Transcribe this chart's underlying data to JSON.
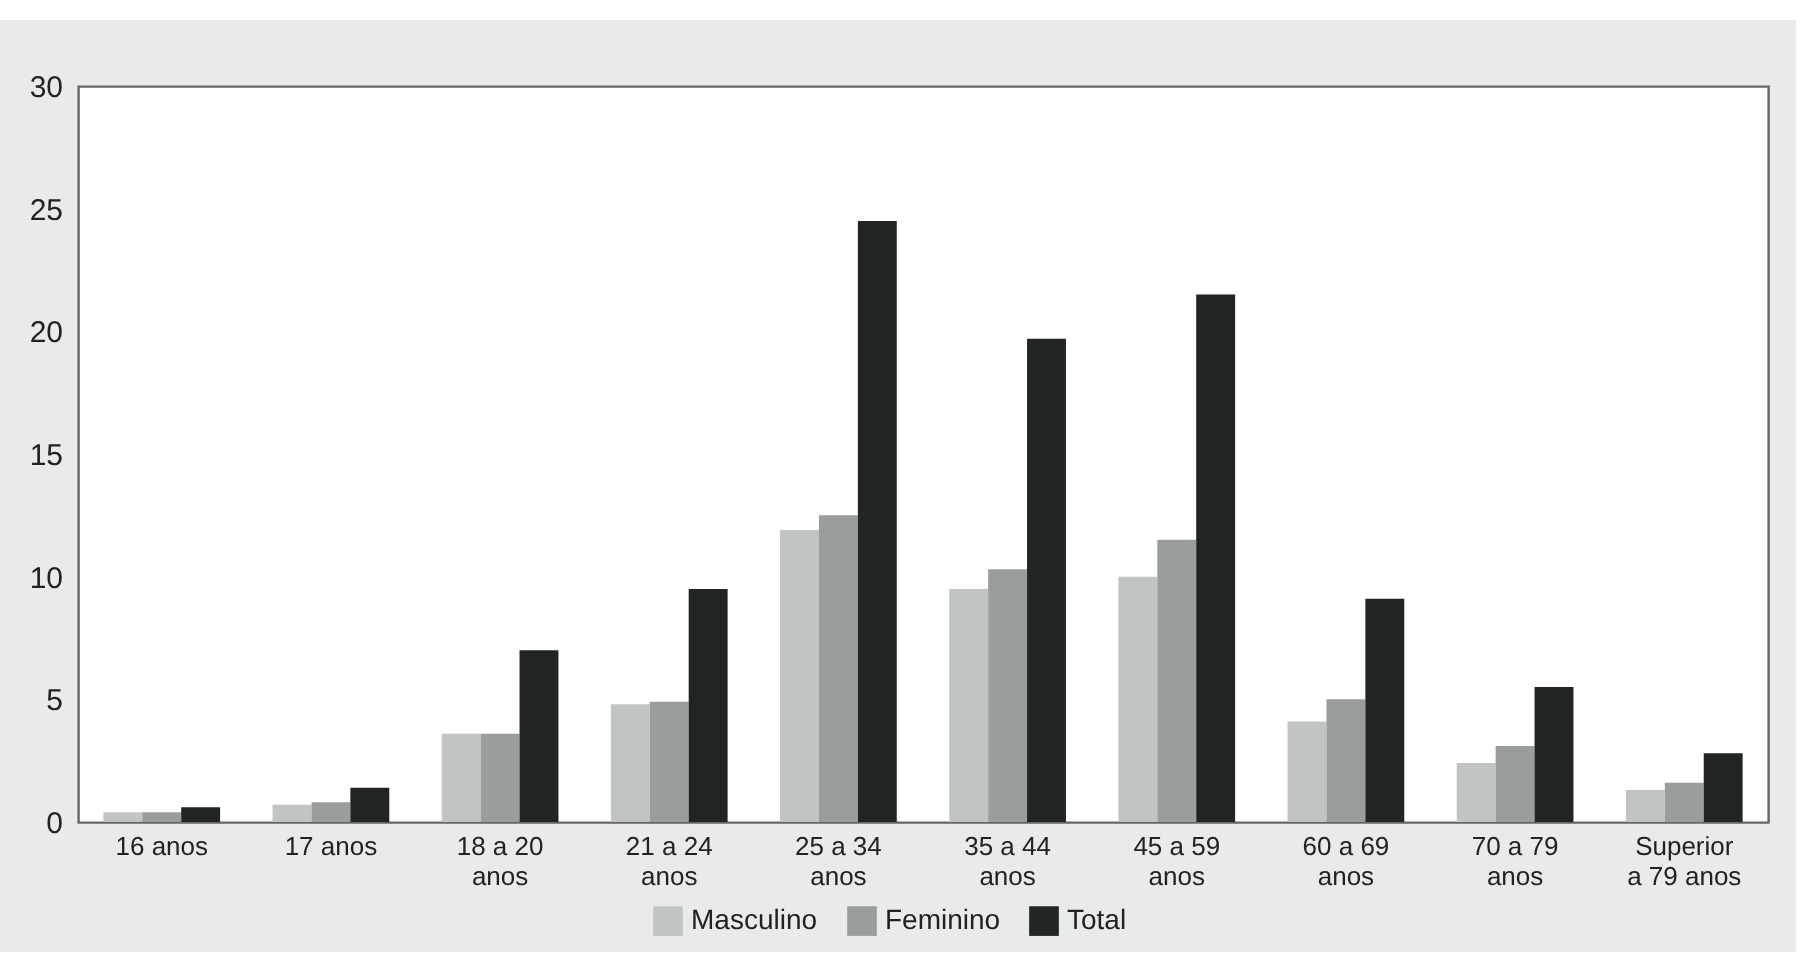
{
  "chart_data": {
    "type": "bar",
    "categories": [
      "16 anos",
      "17 anos",
      "18 a 20 anos",
      "21 a 24 anos",
      "25 a 34 anos",
      "35 a 44 anos",
      "45 a 59 anos",
      "60 a 69 anos",
      "70 a 79 anos",
      "Superior a 79 anos"
    ],
    "series": [
      {
        "name": "Masculino",
        "color": "#c1c4c4",
        "values": [
          0.4,
          0.7,
          3.6,
          4.8,
          11.9,
          9.5,
          10.0,
          4.1,
          2.4,
          1.3
        ]
      },
      {
        "name": "Feminino",
        "color": "#9a9d9e",
        "values": [
          0.4,
          0.8,
          3.6,
          4.9,
          12.5,
          10.3,
          11.5,
          5.0,
          3.1,
          1.6
        ]
      },
      {
        "name": "Total",
        "color": "#202523",
        "values": [
          0.6,
          1.4,
          7.0,
          9.5,
          24.5,
          19.7,
          21.5,
          9.1,
          5.5,
          2.8
        ]
      }
    ],
    "ylim": [
      0,
      30
    ],
    "yticks": [
      0,
      5,
      10,
      15,
      20,
      25,
      30
    ],
    "grid": false,
    "legend": "bottom"
  }
}
